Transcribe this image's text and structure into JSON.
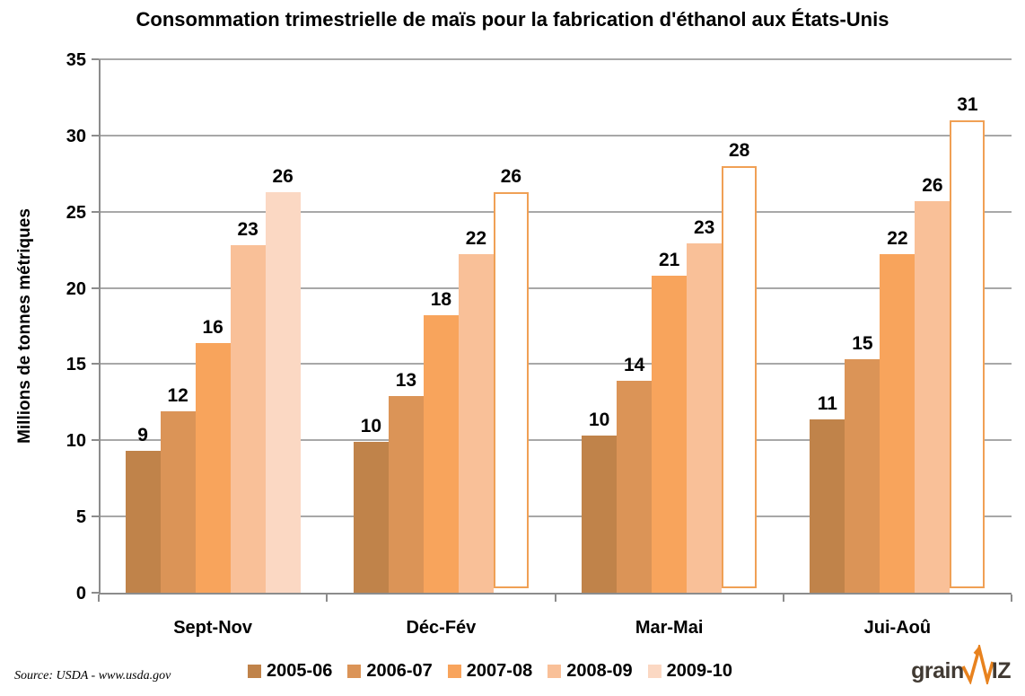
{
  "page": {
    "background": "#ffffff"
  },
  "chart_data": {
    "type": "bar",
    "title": "Consommation trimestrielle de maïs pour la fabrication d'éthanol aux États-Unis",
    "ylabel": "Millions de tonnes métriques",
    "xlabel": "",
    "categories": [
      "Sept-Nov",
      "Déc-Fév",
      "Mar-Mai",
      "Jui-Aoû"
    ],
    "ylim": [
      0,
      35
    ],
    "ytick_step": 5,
    "grid": true,
    "legend_position": "bottom",
    "series": [
      {
        "name": "2005-06",
        "color": "#c0834a",
        "values": [
          9,
          10,
          10,
          11
        ],
        "plotted": [
          9.3,
          9.9,
          10.3,
          11.4
        ]
      },
      {
        "name": "2006-07",
        "color": "#db9457",
        "values": [
          12,
          13,
          14,
          15
        ],
        "plotted": [
          11.9,
          12.9,
          13.9,
          15.3
        ]
      },
      {
        "name": "2007-08",
        "color": "#f8a45c",
        "values": [
          16,
          18,
          21,
          22
        ],
        "plotted": [
          16.4,
          18.2,
          20.8,
          22.2
        ]
      },
      {
        "name": "2008-09",
        "color": "#f9c098",
        "values": [
          23,
          22,
          23,
          26
        ],
        "plotted": [
          22.8,
          22.2,
          22.9,
          25.7
        ]
      },
      {
        "name": "2009-10",
        "color": "#fbd8c3",
        "values": [
          26,
          26,
          28,
          31
        ],
        "plotted": [
          26.3,
          26.3,
          28.0,
          31.0
        ],
        "hollow": [
          false,
          true,
          true,
          true
        ],
        "hollow_fill": "#ffffff",
        "hollow_border": "#f0a055"
      }
    ],
    "colors": {
      "grid": "#a8a8a8",
      "axis": "#8c8c8c",
      "label": "#000000"
    }
  },
  "footer": {
    "source": "Source: USDA - www.usda.gov",
    "logo": {
      "text_before": "grain",
      "text_after": "IZ",
      "text_color": "#413a33",
      "accent_color": "#e8821e"
    }
  }
}
